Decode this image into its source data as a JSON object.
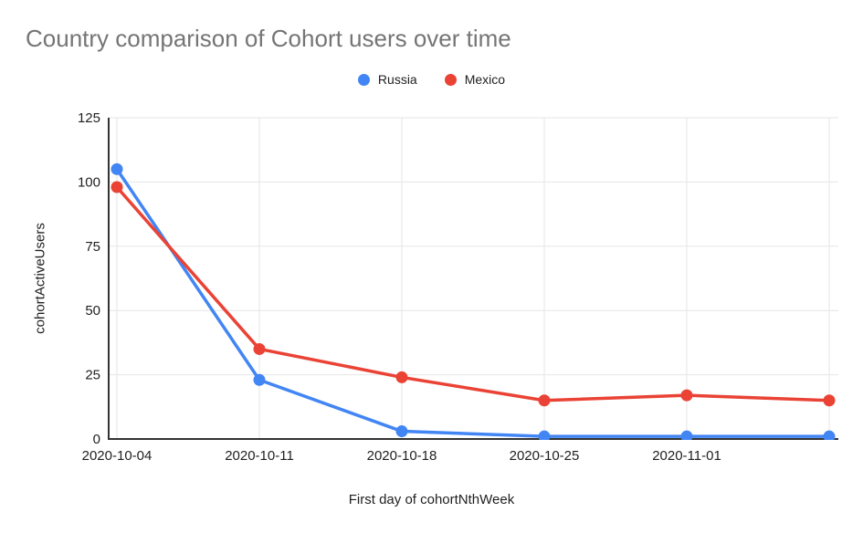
{
  "title": "Country comparison of Cohort users over time",
  "chart_data": {
    "type": "line",
    "title": "Country comparison of Cohort users over time",
    "xlabel": "First day of cohortNthWeek",
    "ylabel": "cohortActiveUsers",
    "x_labels": [
      "2020-10-04",
      "2020-10-11",
      "2020-10-18",
      "2020-10-25",
      "2020-11-01",
      ""
    ],
    "series": [
      {
        "name": "Russia",
        "color": "#4285F4",
        "values": [
          105,
          23,
          3,
          1,
          1,
          1
        ]
      },
      {
        "name": "Mexico",
        "color": "#EA4335",
        "values": [
          98,
          35,
          24,
          15,
          17,
          15
        ]
      }
    ],
    "ylim": [
      0,
      125
    ],
    "yticks": [
      0,
      25,
      50,
      75,
      100,
      125
    ],
    "grid": true,
    "legend_position": "top"
  },
  "colors": {
    "title_text": "#757575",
    "axis_line": "#333333",
    "gridline": "#e6e6e6",
    "tick_text": "#1f1f1f",
    "legend_text": "#202124",
    "background": "#ffffff"
  }
}
